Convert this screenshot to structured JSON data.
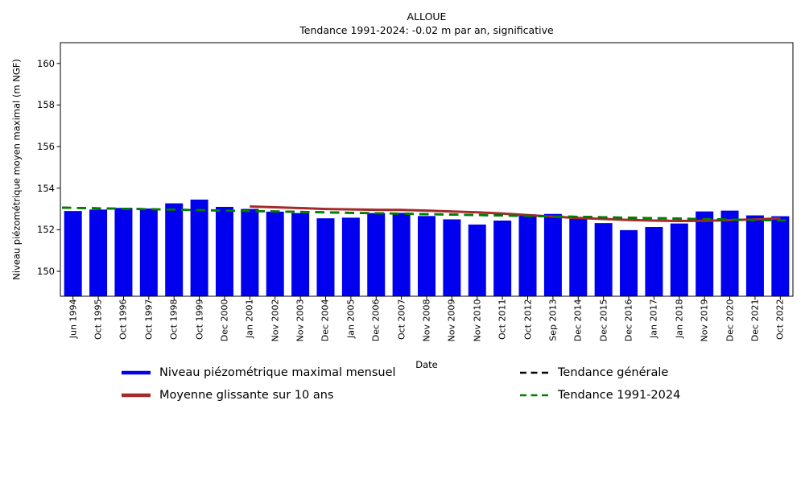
{
  "chart_data": {
    "type": "bar",
    "title": "ALLOUE",
    "subtitle": "Tendance 1991-2024: -0.02 m par an, significative",
    "xlabel": "Date",
    "ylabel": "Niveau piézométrique moyen maximal (m NGF)",
    "categories": [
      "Jun 1994",
      "Oct 1995",
      "Oct 1996",
      "Oct 1997",
      "Oct 1998",
      "Oct 1999",
      "Dec 2000",
      "Jan 2001",
      "Nov 2002",
      "Nov 2003",
      "Dec 2004",
      "Jan 2005",
      "Dec 2006",
      "Oct 2007",
      "Nov 2008",
      "Nov 2009",
      "Nov 2010",
      "Oct 2011",
      "Oct 2012",
      "Sep 2013",
      "Dec 2014",
      "Dec 2015",
      "Dec 2016",
      "Jan 2017",
      "Jan 2018",
      "Nov 2019",
      "Dec 2020",
      "Dec 2021",
      "Oct 2022"
    ],
    "series": [
      {
        "name": "Niveau piézométrique maximal mensuel",
        "type": "bar",
        "color": "#0000ee",
        "values": [
          152.9,
          152.97,
          153.05,
          153.02,
          153.27,
          153.45,
          153.1,
          153.0,
          152.87,
          152.8,
          152.55,
          152.58,
          152.8,
          152.81,
          152.66,
          152.5,
          152.25,
          152.44,
          152.74,
          152.76,
          152.53,
          152.32,
          151.98,
          152.13,
          152.3,
          152.88,
          152.92,
          152.69,
          152.65
        ]
      },
      {
        "name": "Moyenne glissante sur 10 ans",
        "type": "line",
        "color": "#a52a2a",
        "values": [
          null,
          null,
          null,
          null,
          null,
          null,
          null,
          153.12,
          153.08,
          153.04,
          153.0,
          152.98,
          152.96,
          152.95,
          152.92,
          152.88,
          152.84,
          152.78,
          152.7,
          152.63,
          152.57,
          152.52,
          152.47,
          152.44,
          152.42,
          152.43,
          152.46,
          152.5,
          152.55
        ]
      },
      {
        "name": "Tendance générale",
        "type": "trendline",
        "color": "#000000",
        "dashed": true,
        "start": 153.06,
        "end": 152.44,
        "visible_in_plot": false
      },
      {
        "name": "Tendance 1991-2024",
        "type": "trendline",
        "color": "#008000",
        "dashed": true,
        "start": 153.06,
        "end": 152.44
      }
    ],
    "ylim": [
      148.8,
      161.0
    ],
    "yticks": [
      150,
      152,
      154,
      156,
      158,
      160
    ],
    "grid": false,
    "legend_position": "below-axes",
    "legend_columns": 2
  }
}
